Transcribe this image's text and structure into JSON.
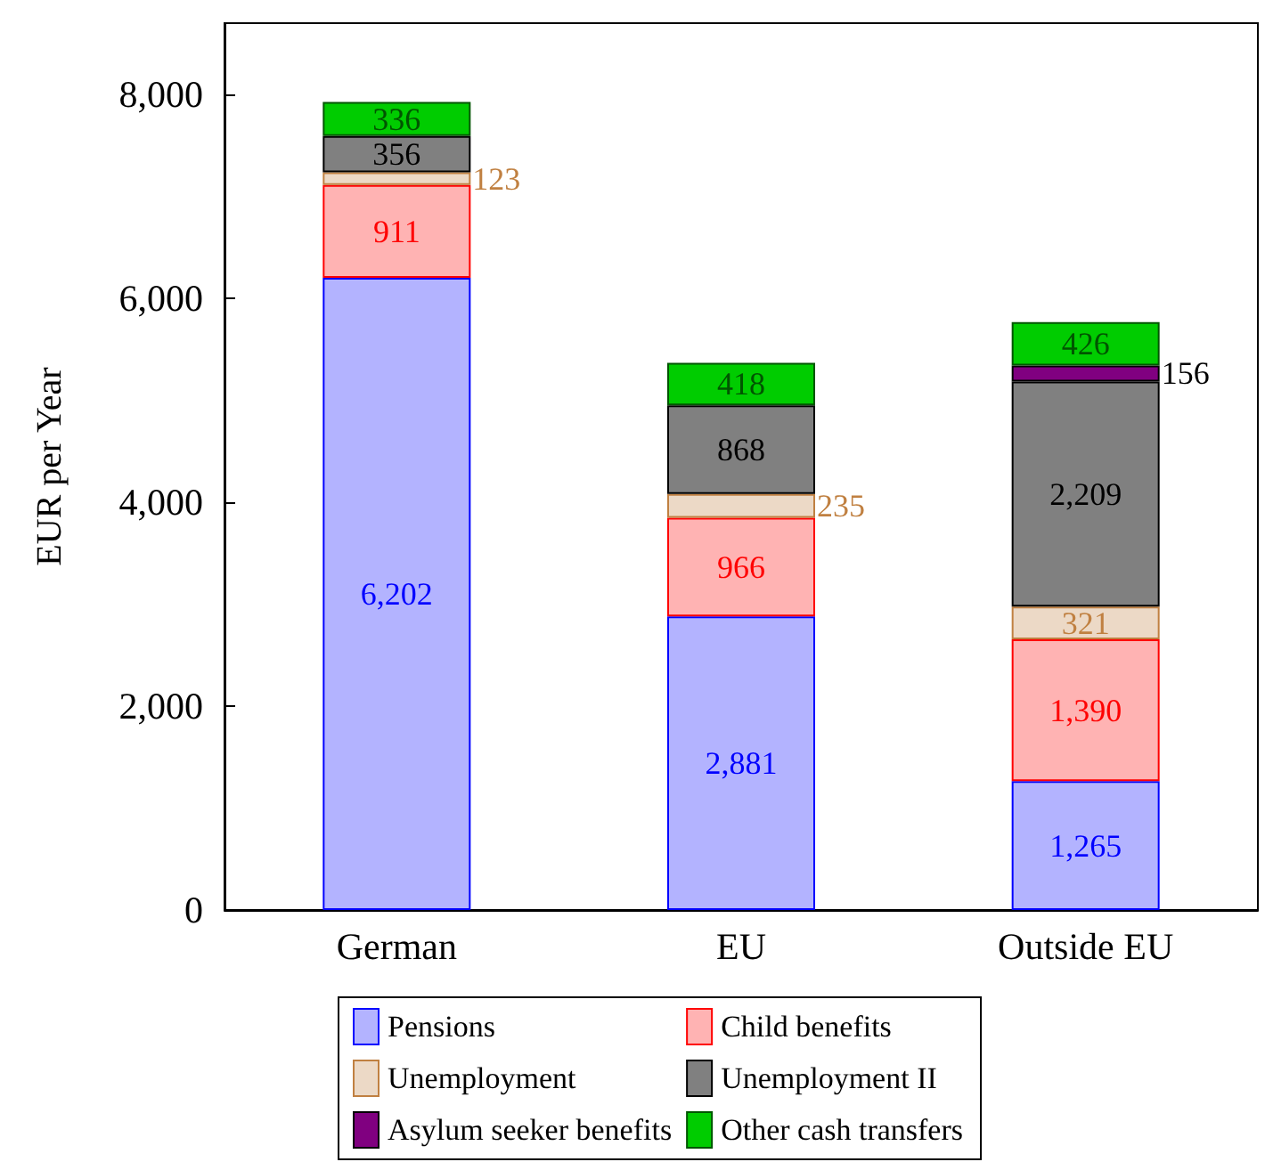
{
  "chart_data": {
    "type": "bar",
    "stacked": true,
    "ylabel": "EUR per Year",
    "categories": [
      "German",
      "EU",
      "Outside EU"
    ],
    "series": [
      {
        "name": "Pensions",
        "color": "#b3b3ff",
        "values": [
          6202,
          2881,
          1265
        ],
        "value_labels": [
          "6,202",
          "2,881",
          "1,265"
        ]
      },
      {
        "name": "Child benefits",
        "color": "#ffb3b3",
        "values": [
          911,
          966,
          1390
        ],
        "value_labels": [
          "911",
          "966",
          "1,390"
        ]
      },
      {
        "name": "Unemployment",
        "color": "#ecd9c6",
        "values": [
          123,
          235,
          321
        ],
        "value_labels": [
          "123",
          "235",
          "321"
        ]
      },
      {
        "name": "Unemployment II",
        "color": "#808080",
        "values": [
          356,
          868,
          2209
        ],
        "value_labels": [
          "356",
          "868",
          "2,209"
        ]
      },
      {
        "name": "Asylum seeker benefits",
        "color": "#800080",
        "values": [
          null,
          null,
          156
        ],
        "value_labels": [
          null,
          null,
          "156"
        ]
      },
      {
        "name": "Other cash transfers",
        "color": "#00cc00",
        "values": [
          336,
          418,
          426
        ],
        "value_labels": [
          "336",
          "418",
          "426"
        ]
      }
    ],
    "ylim": [
      0,
      8700
    ],
    "yticks": [
      0,
      {
        "value": 2000,
        "label": "2,000"
      },
      {
        "value": 4000,
        "label": "4,000"
      },
      {
        "value": 6000,
        "label": "6,000"
      },
      {
        "value": 8000,
        "label": "8,000"
      }
    ],
    "legend": "bottom"
  }
}
